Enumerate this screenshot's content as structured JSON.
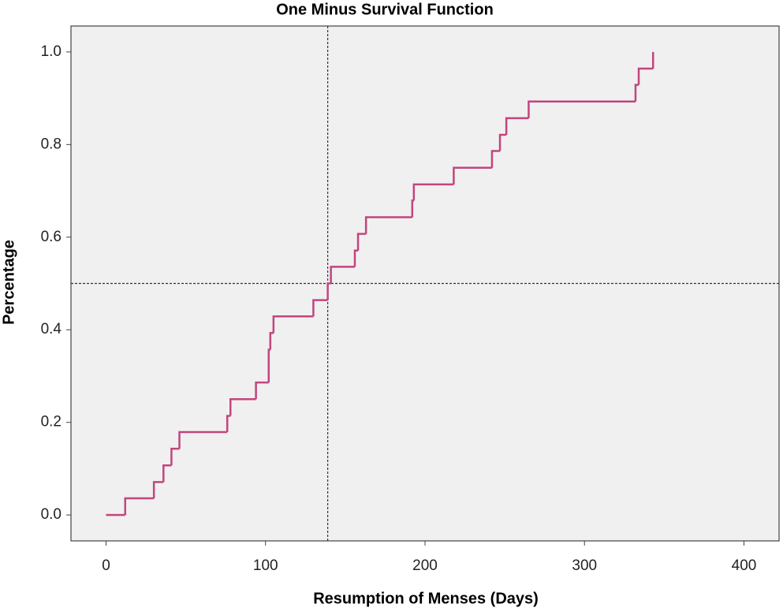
{
  "chart_data": {
    "type": "step",
    "title": "One Minus Survival Function",
    "x_label": "Resumption of Menses (Days)",
    "y_label": "Percentage",
    "color": "#c2457f",
    "background": "#f0f0f0",
    "x": [
      0,
      12,
      30,
      36,
      41,
      46,
      76,
      78,
      94,
      102,
      103,
      105,
      130,
      139,
      141,
      156,
      158,
      163,
      192,
      193,
      218,
      242,
      247,
      251,
      265,
      332,
      334,
      343
    ],
    "values": [
      0,
      0.036,
      0.071,
      0.107,
      0.143,
      0.179,
      0.214,
      0.25,
      0.286,
      0.357,
      0.393,
      0.429,
      0.464,
      0.5,
      0.536,
      0.571,
      0.607,
      0.643,
      0.679,
      0.714,
      0.75,
      0.786,
      0.821,
      0.857,
      0.893,
      0.929,
      0.964,
      1.0
    ],
    "reference_x": 139,
    "reference_y": 0.5,
    "xlim": [
      -22,
      422
    ],
    "ylim": [
      -0.056,
      1.056
    ],
    "xticks": [
      0,
      100,
      200,
      300,
      400
    ],
    "yticks": [
      {
        "value": 0,
        "label": "0.0"
      },
      0.2,
      0.4,
      0.6,
      0.8,
      {
        "value": 1,
        "label": "1.0"
      }
    ]
  }
}
